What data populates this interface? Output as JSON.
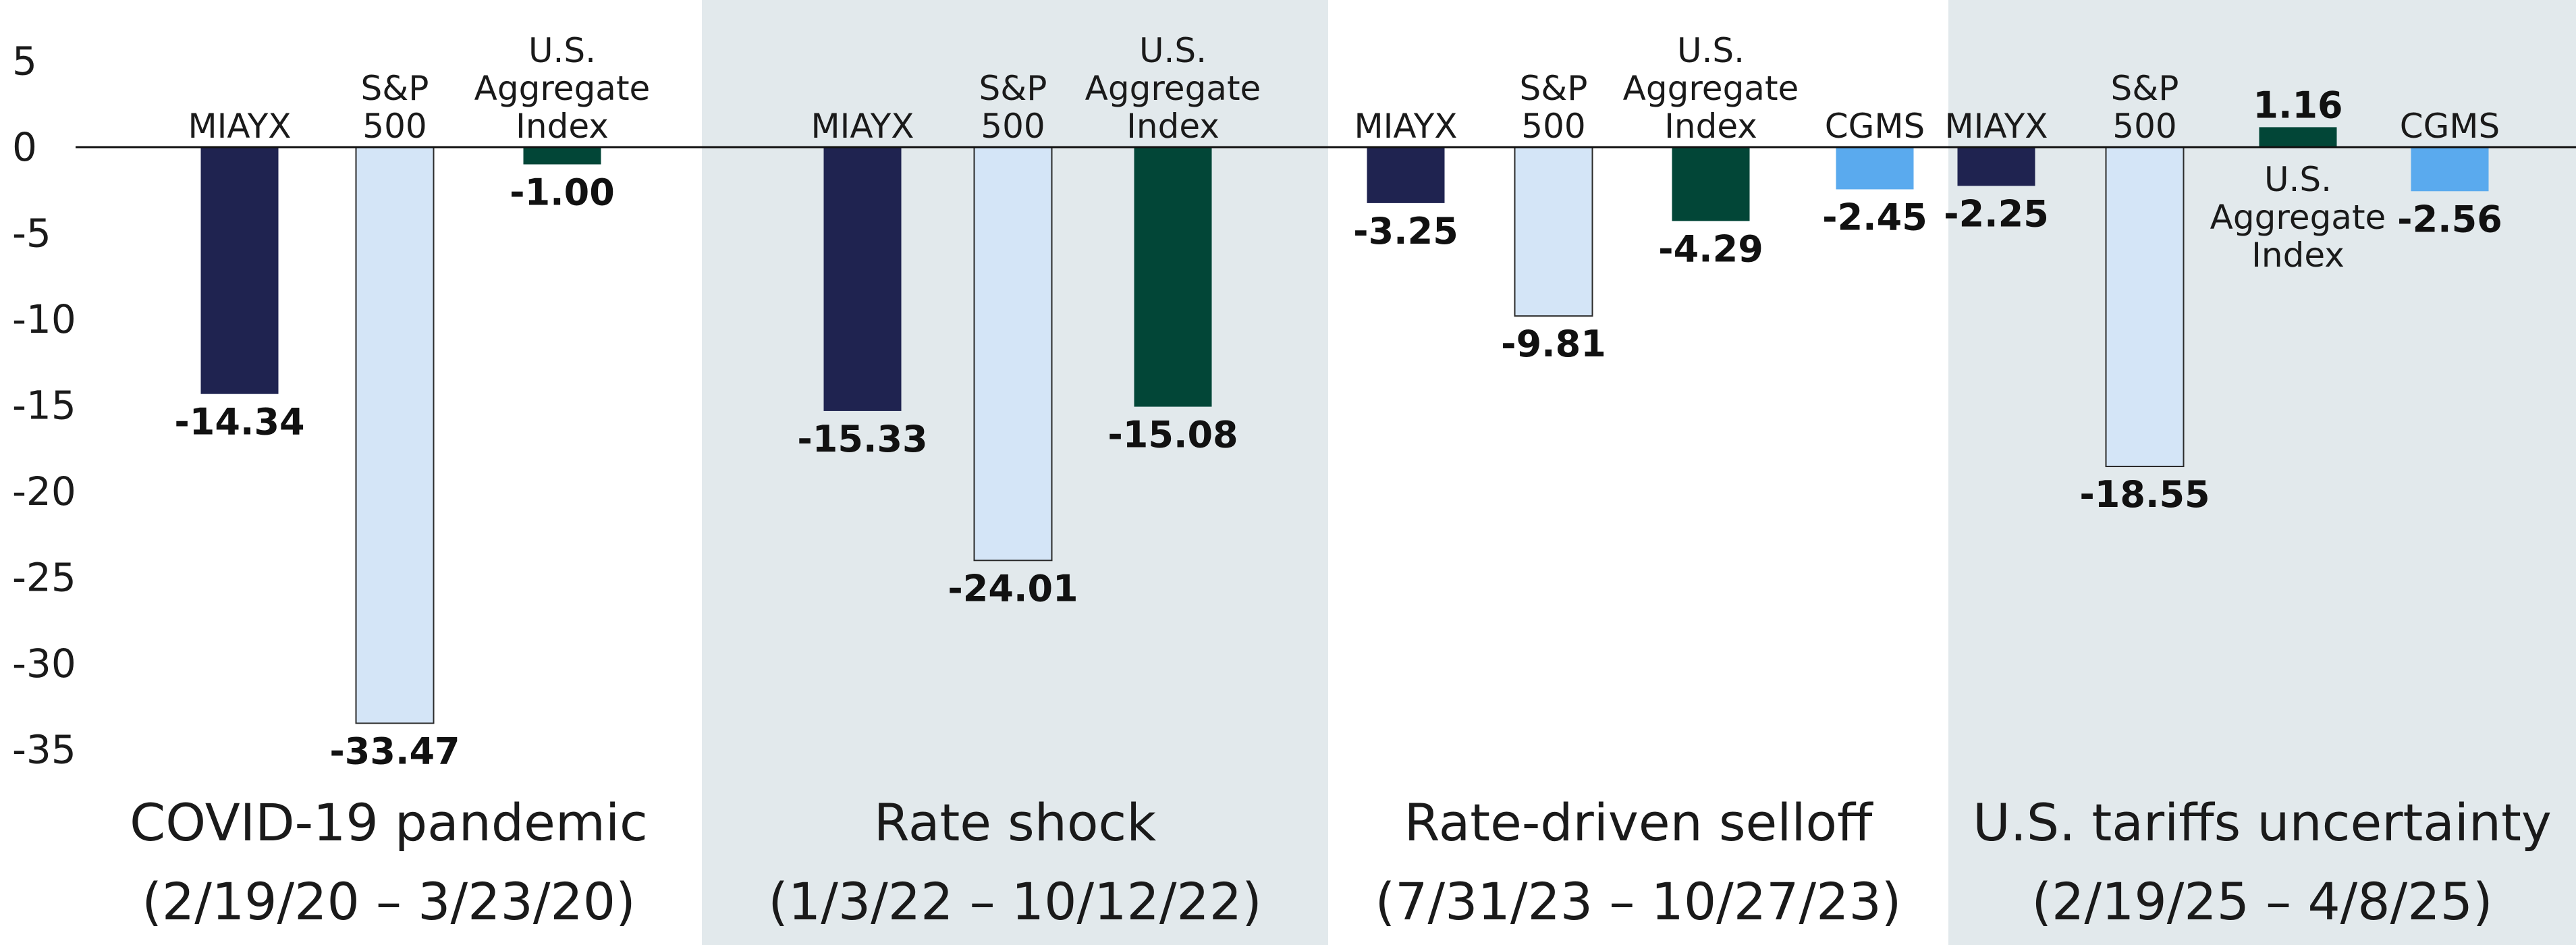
{
  "chart_data": {
    "type": "bar",
    "title": "",
    "xlabel": "",
    "ylabel": "",
    "ylim": [
      -35,
      5
    ],
    "yticks": [
      5,
      0,
      -5,
      -10,
      -15,
      -20,
      -25,
      -30,
      -35
    ],
    "ytick_labels": [
      "5",
      "0",
      "-5",
      "-10",
      "-15",
      "-20",
      "-25",
      "-30",
      "-35"
    ],
    "grid": false,
    "colors": {
      "MIAYX": "#1f2350",
      "S&P 500": "#d4e5f7",
      "U.S. Aggregate Index": "#024637",
      "CGMS": "#5aaaee",
      "shade": "#e2e9ec"
    },
    "groups": [
      {
        "name_line1": "COVID-19 pandemic",
        "name_line2": "(2/19/20 – 3/23/20)",
        "shaded": false,
        "bars": [
          {
            "series": "MIAYX",
            "label_lines": [
              "MIAYX"
            ],
            "value": -14.34,
            "value_label": "-14.34"
          },
          {
            "series": "S&P 500",
            "label_lines": [
              "S&P",
              "500"
            ],
            "value": -33.47,
            "value_label": "-33.47"
          },
          {
            "series": "U.S. Aggregate Index",
            "label_lines": [
              "U.S.",
              "Aggregate",
              "Index"
            ],
            "value": -1.0,
            "value_label": "-1.00"
          }
        ]
      },
      {
        "name_line1": "Rate shock",
        "name_line2": "(1/3/22 – 10/12/22)",
        "shaded": true,
        "bars": [
          {
            "series": "MIAYX",
            "label_lines": [
              "MIAYX"
            ],
            "value": -15.33,
            "value_label": "-15.33"
          },
          {
            "series": "S&P 500",
            "label_lines": [
              "S&P",
              "500"
            ],
            "value": -24.01,
            "value_label": "-24.01"
          },
          {
            "series": "U.S. Aggregate Index",
            "label_lines": [
              "U.S.",
              "Aggregate",
              "Index"
            ],
            "value": -15.08,
            "value_label": "-15.08"
          }
        ]
      },
      {
        "name_line1": "Rate-driven selloff",
        "name_line2": "(7/31/23 – 10/27/23)",
        "shaded": false,
        "bars": [
          {
            "series": "MIAYX",
            "label_lines": [
              "MIAYX"
            ],
            "value": -3.25,
            "value_label": "-3.25"
          },
          {
            "series": "S&P 500",
            "label_lines": [
              "S&P",
              "500"
            ],
            "value": -9.81,
            "value_label": "-9.81"
          },
          {
            "series": "U.S. Aggregate Index",
            "label_lines": [
              "U.S.",
              "Aggregate",
              "Index"
            ],
            "value": -4.29,
            "value_label": "-4.29"
          },
          {
            "series": "CGMS",
            "label_lines": [
              "CGMS"
            ],
            "value": -2.45,
            "value_label": "-2.45"
          }
        ]
      },
      {
        "name_line1": "U.S. tariffs uncertainty",
        "name_line2": "(2/19/25 – 4/8/25)",
        "shaded": true,
        "bars": [
          {
            "series": "MIAYX",
            "label_lines": [
              "MIAYX"
            ],
            "value": -2.25,
            "value_label": "-2.25"
          },
          {
            "series": "S&P 500",
            "label_lines": [
              "S&P",
              "500"
            ],
            "value": -18.55,
            "value_label": "-18.55"
          },
          {
            "series": "U.S. Aggregate Index",
            "label_lines": [
              "U.S.",
              "Aggregate",
              "Index"
            ],
            "value": 1.16,
            "value_label": "1.16"
          },
          {
            "series": "CGMS",
            "label_lines": [
              "CGMS"
            ],
            "value": -2.56,
            "value_label": "-2.56"
          }
        ]
      }
    ]
  }
}
